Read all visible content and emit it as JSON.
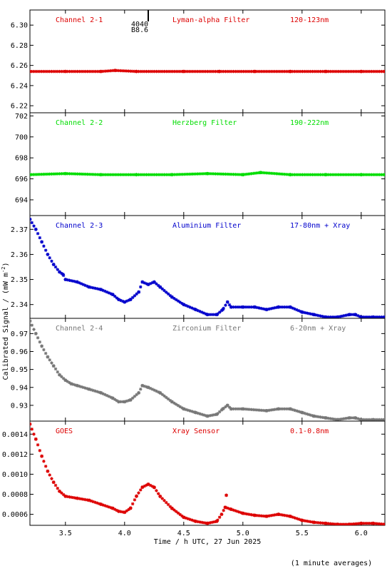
{
  "page": {
    "ylabel": "Calibrated Signal / (mW m",
    "ylabel_sup": "-2",
    "ylabel_end": ")",
    "xlabel": "Time / h UTC, 27 Jun 2025",
    "footnote": "(1 minute averages)",
    "marker": {
      "label1": "4040",
      "label2": "B8.6",
      "x": 4.2
    }
  },
  "chart_data": [
    {
      "type": "scatter",
      "channel": "Channel 2-1",
      "filter": "Lyman-alpha Filter",
      "band": "120-123nm",
      "color": "#dd0000",
      "xlim": [
        3.2,
        6.2
      ],
      "ylim": [
        6.213,
        6.315
      ],
      "yticks": [
        6.22,
        6.24,
        6.26,
        6.28,
        6.3
      ],
      "yfmt": 2,
      "points": [
        [
          3.2,
          6.254
        ],
        [
          3.5,
          6.254
        ],
        [
          3.8,
          6.254
        ],
        [
          3.92,
          6.255
        ],
        [
          4.1,
          6.254
        ],
        [
          4.5,
          6.254
        ],
        [
          4.8,
          6.254
        ],
        [
          5.1,
          6.254
        ],
        [
          5.4,
          6.254
        ],
        [
          5.7,
          6.254
        ],
        [
          6.0,
          6.254
        ],
        [
          6.2,
          6.254
        ]
      ]
    },
    {
      "type": "scatter",
      "channel": "Channel 2-2",
      "filter": "Herzberg Filter",
      "band": "190-222nm",
      "color": "#00dd00",
      "xlim": [
        3.2,
        6.2
      ],
      "ylim": [
        692.5,
        702.3
      ],
      "yticks": [
        694,
        696,
        698,
        700,
        702
      ],
      "yfmt": 0,
      "points": [
        [
          3.2,
          696.4
        ],
        [
          3.5,
          696.5
        ],
        [
          3.8,
          696.4
        ],
        [
          4.1,
          696.4
        ],
        [
          4.4,
          696.4
        ],
        [
          4.7,
          696.5
        ],
        [
          5.0,
          696.4
        ],
        [
          5.15,
          696.6
        ],
        [
          5.4,
          696.4
        ],
        [
          5.7,
          696.4
        ],
        [
          6.0,
          696.4
        ],
        [
          6.2,
          696.4
        ]
      ]
    },
    {
      "type": "scatter",
      "channel": "Channel 2-3",
      "filter": "Aluminium Filter",
      "band": "17-80nm + Xray",
      "color": "#0000cc",
      "xlim": [
        3.2,
        6.2
      ],
      "ylim": [
        2.3345,
        2.3755
      ],
      "yticks": [
        2.34,
        2.35,
        2.36,
        2.37
      ],
      "yfmt": 2,
      "points": [
        [
          3.2,
          2.374
        ],
        [
          3.25,
          2.37
        ],
        [
          3.3,
          2.365
        ],
        [
          3.35,
          2.36
        ],
        [
          3.4,
          2.356
        ],
        [
          3.45,
          2.353
        ],
        [
          3.48,
          2.352
        ],
        [
          3.5,
          2.35
        ],
        [
          3.6,
          2.349
        ],
        [
          3.7,
          2.347
        ],
        [
          3.8,
          2.346
        ],
        [
          3.9,
          2.344
        ],
        [
          3.95,
          2.342
        ],
        [
          4.0,
          2.341
        ],
        [
          4.05,
          2.342
        ],
        [
          4.12,
          2.345
        ],
        [
          4.15,
          2.349
        ],
        [
          4.2,
          2.348
        ],
        [
          4.25,
          2.349
        ],
        [
          4.3,
          2.347
        ],
        [
          4.4,
          2.343
        ],
        [
          4.5,
          2.34
        ],
        [
          4.6,
          2.338
        ],
        [
          4.7,
          2.336
        ],
        [
          4.78,
          2.336
        ],
        [
          4.83,
          2.338
        ],
        [
          4.87,
          2.341
        ],
        [
          4.9,
          2.339
        ],
        [
          5.0,
          2.339
        ],
        [
          5.1,
          2.339
        ],
        [
          5.2,
          2.338
        ],
        [
          5.3,
          2.339
        ],
        [
          5.4,
          2.339
        ],
        [
          5.5,
          2.337
        ],
        [
          5.6,
          2.336
        ],
        [
          5.7,
          2.335
        ],
        [
          5.8,
          2.335
        ],
        [
          5.9,
          2.336
        ],
        [
          5.95,
          2.336
        ],
        [
          6.0,
          2.335
        ],
        [
          6.1,
          2.335
        ],
        [
          6.2,
          2.335
        ]
      ]
    },
    {
      "type": "scatter",
      "channel": "Channel 2-4",
      "filter": "Zirconium Filter",
      "band": "6-20nm + Xray",
      "color": "#777777",
      "xlim": [
        3.2,
        6.2
      ],
      "ylim": [
        0.9212,
        0.9785
      ],
      "yticks": [
        0.93,
        0.94,
        0.95,
        0.96,
        0.97
      ],
      "yfmt": 2,
      "points": [
        [
          3.2,
          0.977
        ],
        [
          3.25,
          0.97
        ],
        [
          3.3,
          0.963
        ],
        [
          3.35,
          0.957
        ],
        [
          3.4,
          0.952
        ],
        [
          3.45,
          0.947
        ],
        [
          3.5,
          0.944
        ],
        [
          3.55,
          0.942
        ],
        [
          3.6,
          0.941
        ],
        [
          3.7,
          0.939
        ],
        [
          3.8,
          0.937
        ],
        [
          3.9,
          0.934
        ],
        [
          3.95,
          0.932
        ],
        [
          4.0,
          0.932
        ],
        [
          4.05,
          0.933
        ],
        [
          4.12,
          0.937
        ],
        [
          4.15,
          0.941
        ],
        [
          4.2,
          0.94
        ],
        [
          4.3,
          0.937
        ],
        [
          4.4,
          0.932
        ],
        [
          4.5,
          0.928
        ],
        [
          4.6,
          0.926
        ],
        [
          4.7,
          0.924
        ],
        [
          4.78,
          0.925
        ],
        [
          4.83,
          0.928
        ],
        [
          4.87,
          0.93
        ],
        [
          4.9,
          0.928
        ],
        [
          5.0,
          0.928
        ],
        [
          5.2,
          0.927
        ],
        [
          5.3,
          0.928
        ],
        [
          5.4,
          0.928
        ],
        [
          5.5,
          0.926
        ],
        [
          5.6,
          0.924
        ],
        [
          5.7,
          0.923
        ],
        [
          5.8,
          0.922
        ],
        [
          5.9,
          0.923
        ],
        [
          5.95,
          0.923
        ],
        [
          6.0,
          0.922
        ],
        [
          6.1,
          0.922
        ],
        [
          6.2,
          0.922
        ]
      ]
    },
    {
      "type": "scatter",
      "channel": "GOES",
      "filter": "Xray Sensor",
      "band": "0.1-0.8nm",
      "color": "#dd0000",
      "xlim": [
        3.2,
        6.2
      ],
      "ylim": [
        0.00049,
        0.00153
      ],
      "yticks": [
        0.0006,
        0.0008,
        0.001,
        0.0012,
        0.0014
      ],
      "yfmt": 4,
      "points": [
        [
          3.2,
          0.0015
        ],
        [
          3.25,
          0.00135
        ],
        [
          3.3,
          0.00118
        ],
        [
          3.35,
          0.00103
        ],
        [
          3.4,
          0.00092
        ],
        [
          3.45,
          0.00083
        ],
        [
          3.5,
          0.00078
        ],
        [
          3.6,
          0.00076
        ],
        [
          3.7,
          0.00074
        ],
        [
          3.8,
          0.0007
        ],
        [
          3.9,
          0.00066
        ],
        [
          3.95,
          0.00063
        ],
        [
          4.0,
          0.00062
        ],
        [
          4.05,
          0.00066
        ],
        [
          4.1,
          0.00078
        ],
        [
          4.15,
          0.00087
        ],
        [
          4.2,
          0.0009
        ],
        [
          4.25,
          0.00087
        ],
        [
          4.3,
          0.00078
        ],
        [
          4.4,
          0.00066
        ],
        [
          4.5,
          0.00057
        ],
        [
          4.6,
          0.00053
        ],
        [
          4.7,
          0.00051
        ],
        [
          4.78,
          0.00053
        ],
        [
          4.82,
          0.0006
        ],
        [
          4.85,
          0.00067
        ],
        [
          4.9,
          0.00065
        ],
        [
          5.0,
          0.00061
        ],
        [
          5.1,
          0.00059
        ],
        [
          5.2,
          0.00058
        ],
        [
          5.3,
          0.0006
        ],
        [
          5.4,
          0.00058
        ],
        [
          5.5,
          0.00054
        ],
        [
          5.6,
          0.00052
        ],
        [
          5.7,
          0.00051
        ],
        [
          5.8,
          0.0005
        ],
        [
          5.9,
          0.0005
        ],
        [
          6.0,
          0.00051
        ],
        [
          6.1,
          0.00051
        ],
        [
          6.2,
          0.0005
        ]
      ],
      "outliers": [
        [
          4.86,
          0.00079
        ]
      ]
    }
  ],
  "xaxis": {
    "ticks": [
      3.5,
      4.0,
      4.5,
      5.0,
      5.5,
      6.0
    ],
    "labels": [
      "3.5",
      "4.0",
      "4.5",
      "5.0",
      "5.5",
      "6.0"
    ]
  }
}
